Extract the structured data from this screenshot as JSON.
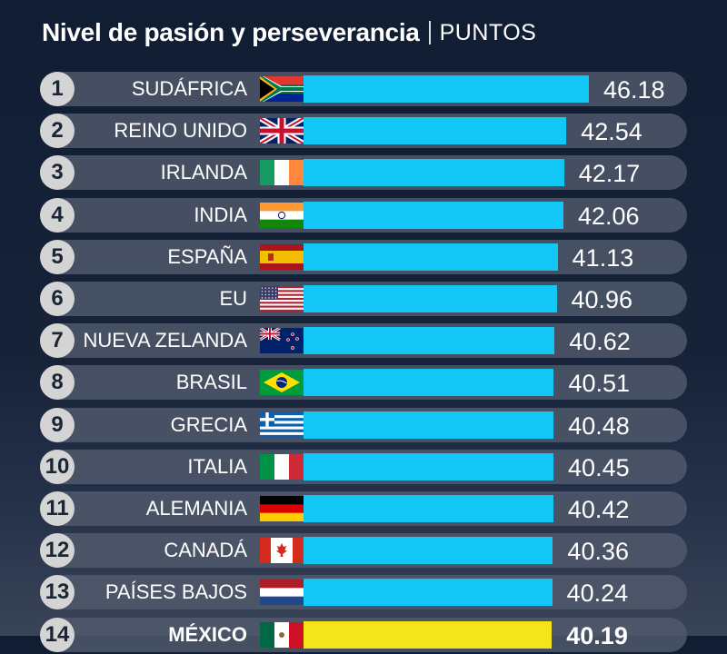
{
  "title": "Nivel de pasión y perseverancia",
  "unit_label": "PUNTOS",
  "chart_data": {
    "type": "bar",
    "orientation": "horizontal",
    "title": "Nivel de pasión y perseverancia",
    "unit": "PUNTOS",
    "categories": [
      "SUDÁFRICA",
      "REINO UNIDO",
      "IRLANDA",
      "INDIA",
      "ESPAÑA",
      "EU",
      "NUEVA ZELANDA",
      "BRASIL",
      "GRECIA",
      "ITALIA",
      "ALEMANIA",
      "CANADÁ",
      "PAÍSES BAJOS",
      "MÉXICO"
    ],
    "ranks": [
      "1",
      "2",
      "3",
      "4",
      "5",
      "6",
      "7",
      "8",
      "9",
      "10",
      "11",
      "12",
      "13",
      "14"
    ],
    "values": [
      46.18,
      42.54,
      42.17,
      42.06,
      41.13,
      40.96,
      40.62,
      40.51,
      40.48,
      40.45,
      40.42,
      40.36,
      40.24,
      40.19
    ],
    "value_labels": [
      "46.18",
      "42.54",
      "42.17",
      "42.06",
      "41.13",
      "40.96",
      "40.62",
      "40.51",
      "40.48",
      "40.45",
      "40.42",
      "40.36",
      "40.24",
      "40.19"
    ],
    "flags": [
      "south-africa-flag",
      "united-kingdom-flag",
      "ireland-flag",
      "india-flag",
      "spain-flag",
      "usa-flag",
      "new-zealand-flag",
      "brazil-flag",
      "greece-flag",
      "italy-flag",
      "germany-flag",
      "canada-flag",
      "netherlands-flag",
      "mexico-flag"
    ],
    "highlight": "MÉXICO",
    "xlim": [
      0,
      46.18
    ],
    "colors": {
      "bar": "#12c6f5",
      "highlight": "#f4e41a",
      "track": "#525a6c",
      "rank_badge": "#d4d4d4"
    },
    "grid": false,
    "legend": "none"
  }
}
